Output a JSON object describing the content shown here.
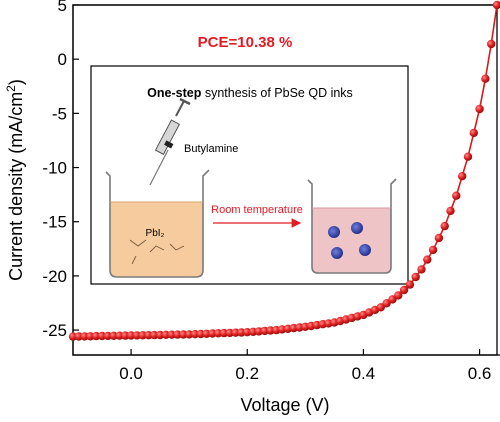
{
  "chart_data": {
    "type": "line",
    "xlabel": "Voltage (V)",
    "ylabel_main": "Current density (mA/cm",
    "ylabel_sup": "2",
    "ylabel_close": ")",
    "xlim": [
      -0.1,
      0.63
    ],
    "ylim": [
      -27.3,
      5
    ],
    "xticks": [
      0.0,
      0.2,
      0.4,
      0.6
    ],
    "xtick_labels": [
      "0.0",
      "0.2",
      "0.4",
      "0.6"
    ],
    "yticks": [
      5,
      0,
      -5,
      -10,
      -15,
      -20,
      -25
    ],
    "ytick_labels": [
      "5",
      "0",
      "-5",
      "-10",
      "-15",
      "-20",
      "-25"
    ],
    "annotation": "PCE=10.38 %",
    "series": [
      {
        "color": "#d91a1a",
        "marker": "sphere",
        "points": [
          [
            -0.1,
            -25.6
          ],
          [
            -0.05,
            -25.55
          ],
          [
            0.0,
            -25.5
          ],
          [
            0.05,
            -25.45
          ],
          [
            0.1,
            -25.4
          ],
          [
            0.15,
            -25.3
          ],
          [
            0.2,
            -25.2
          ],
          [
            0.25,
            -25.0
          ],
          [
            0.3,
            -24.7
          ],
          [
            0.35,
            -24.3
          ],
          [
            0.4,
            -23.6
          ],
          [
            0.43,
            -22.9
          ],
          [
            0.46,
            -21.8
          ],
          [
            0.48,
            -20.8
          ],
          [
            0.5,
            -19.4
          ],
          [
            0.52,
            -17.6
          ],
          [
            0.54,
            -15.4
          ],
          [
            0.56,
            -12.6
          ],
          [
            0.58,
            -9.0
          ],
          [
            0.6,
            -4.6
          ],
          [
            0.61,
            -1.8
          ],
          [
            0.62,
            1.4
          ],
          [
            0.625,
            3.2
          ],
          [
            0.63,
            5.0
          ]
        ]
      }
    ]
  },
  "inset": {
    "title_bold": "One-step",
    "title_rest": " synthesis of PbSe QD inks",
    "syringe_label": "Butylamine",
    "beaker_label": "PbI₂",
    "arrow_label": "Room temperature"
  },
  "colors": {
    "series": "#d91a1a",
    "annotation": "#e31b23",
    "left_liquid": "#f6cc9e",
    "right_liquid": "#efc4c6",
    "qd": "#3a4bb0"
  }
}
